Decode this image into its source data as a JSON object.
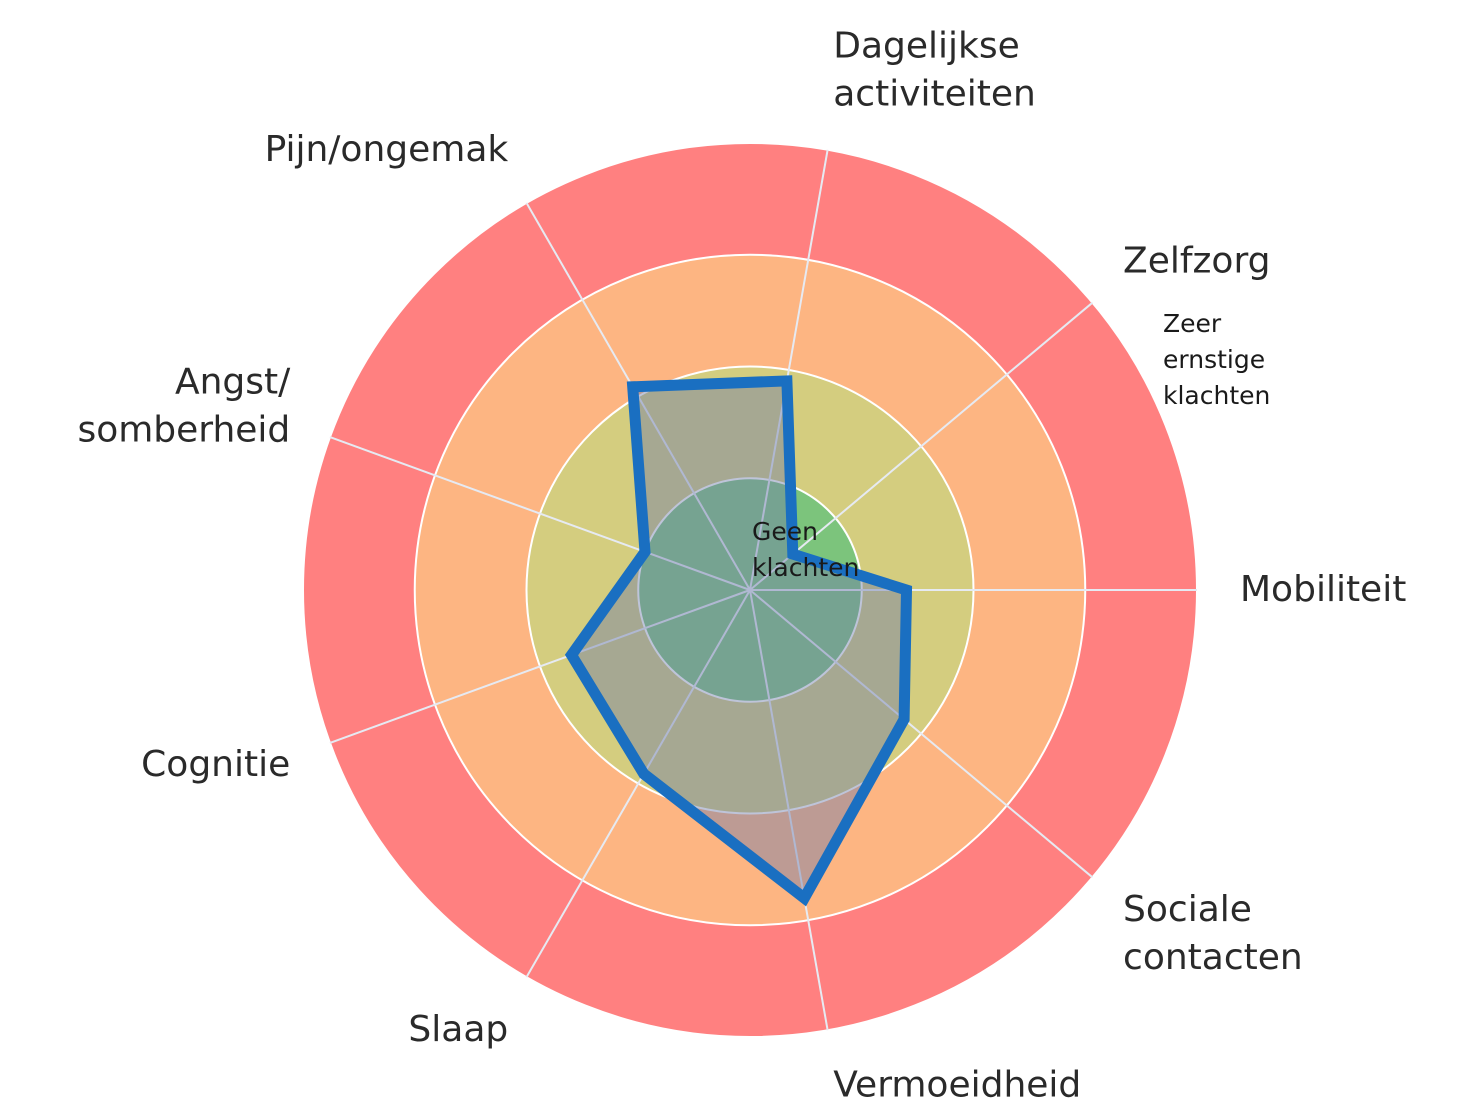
{
  "chart_data": {
    "type": "radar",
    "categories": [
      "Mobiliteit",
      "Zelfzorg",
      "Dagelijkse activiteiten",
      "Pijn/ongemak",
      "Angst/ somberheid",
      "Cognitie",
      "Slaap",
      "Vermoeidheid",
      "Sociale contacten"
    ],
    "series": [
      {
        "color": "#1a6fc1",
        "values": [
          1.4,
          0.5,
          1.9,
          2.1,
          1.0,
          1.7,
          1.9,
          2.8,
          1.8
        ]
      }
    ],
    "rings": [
      {
        "label": "Geen klachten",
        "color": "#7cc47c"
      },
      {
        "color": "#d4cd7f"
      },
      {
        "color": "#fdb582"
      },
      {
        "label": "Zeer ernstige klachten",
        "color": "#ff8080"
      }
    ],
    "ylim": [
      0,
      4
    ],
    "yticks": [
      1,
      2,
      3,
      4
    ],
    "grid": true
  }
}
